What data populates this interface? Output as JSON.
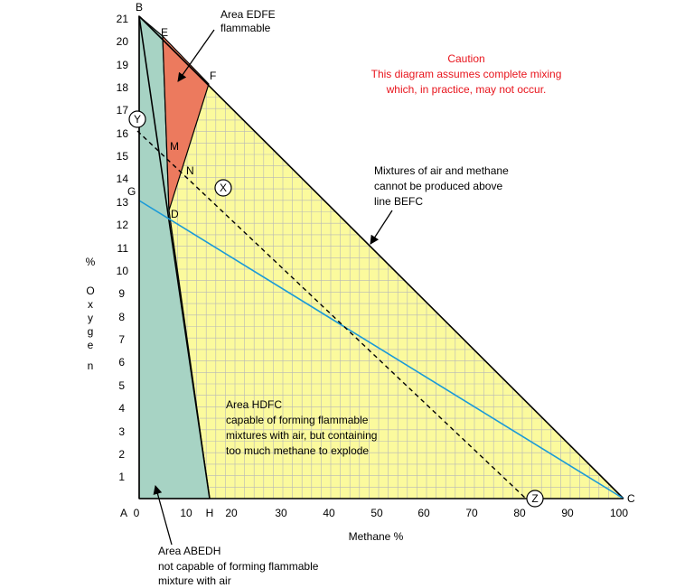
{
  "axes": {
    "x_label": "Methane %",
    "y_label_chars": [
      "%",
      "O",
      "x",
      "y",
      "g",
      "e",
      "n"
    ],
    "y_ticks": [
      "1",
      "2",
      "3",
      "4",
      "5",
      "6",
      "7",
      "8",
      "9",
      "10",
      "11",
      "12",
      "13",
      "14",
      "15",
      "16",
      "17",
      "18",
      "19",
      "20",
      "21"
    ],
    "x_ticks": [
      "10",
      "20",
      "30",
      "40",
      "50",
      "60",
      "70",
      "80",
      "90",
      "100"
    ],
    "origin_letter": "A",
    "origin_zero": "0"
  },
  "points": {
    "A": "A",
    "B": "B",
    "C": "C",
    "D": "D",
    "E": "E",
    "F": "F",
    "G": "G",
    "H": "H",
    "M": "M",
    "N": "N",
    "X": "X",
    "Y": "Y",
    "Z": "Z"
  },
  "annotations": {
    "edfe": [
      "Area EDFE",
      "flammable"
    ],
    "caution": [
      "Caution",
      "This diagram assumes complete mixing",
      "which, in practice, may not occur."
    ],
    "befc": [
      "Mixtures of air and methane",
      "cannot be produced above",
      "line BEFC"
    ],
    "hdfc": [
      "Area HDFC",
      "capable of forming flammable",
      "mixtures with air, but containing",
      "too much methane to explode"
    ],
    "abedh": [
      "Area ABEDH",
      "not capable of forming flammable",
      "mixture with air"
    ]
  },
  "colors": {
    "yellow_region": "#fbfa9d",
    "teal_region": "#a7d3c4",
    "red_region": "#ec7a5e",
    "grid": "#b7b7b7",
    "blue_line": "#1a9ad8",
    "caution_text": "#e8141c"
  }
}
